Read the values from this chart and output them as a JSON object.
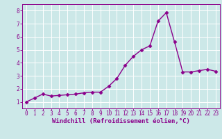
{
  "x": [
    0,
    1,
    2,
    3,
    4,
    5,
    6,
    7,
    8,
    9,
    10,
    11,
    12,
    13,
    14,
    15,
    16,
    17,
    18,
    19,
    20,
    21,
    22,
    23
  ],
  "y": [
    1.0,
    1.3,
    1.6,
    1.45,
    1.5,
    1.55,
    1.6,
    1.7,
    1.75,
    1.75,
    2.2,
    2.8,
    3.8,
    4.5,
    5.0,
    5.3,
    7.2,
    7.85,
    5.6,
    3.3,
    3.3,
    3.4,
    3.5,
    3.35
  ],
  "line_color": "#8B008B",
  "marker": "D",
  "marker_size": 2.5,
  "line_width": 1.0,
  "bg_color": "#cce8e8",
  "grid_color": "#ffffff",
  "xlabel": "Windchill (Refroidissement éolien,°C)",
  "xlabel_color": "#8B008B",
  "xlabel_fontsize": 6.5,
  "tick_color": "#8B008B",
  "tick_fontsize": 5.5,
  "xlim": [
    -0.5,
    23.5
  ],
  "ylim": [
    0.5,
    8.5
  ],
  "yticks": [
    1,
    2,
    3,
    4,
    5,
    6,
    7,
    8
  ],
  "xticks": [
    0,
    1,
    2,
    3,
    4,
    5,
    6,
    7,
    8,
    9,
    10,
    11,
    12,
    13,
    14,
    15,
    16,
    17,
    18,
    19,
    20,
    21,
    22,
    23
  ]
}
